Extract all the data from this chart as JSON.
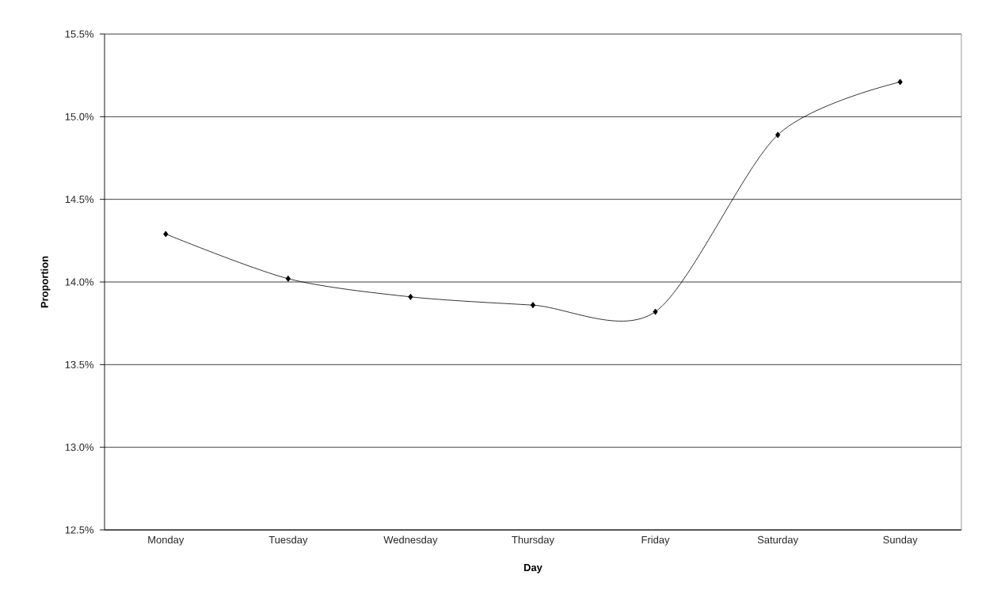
{
  "chart_data": {
    "type": "line",
    "xlabel": "Day",
    "ylabel": "Proportion",
    "categories": [
      "Monday",
      "Tuesday",
      "Wednesday",
      "Thursday",
      "Friday",
      "Saturday",
      "Sunday"
    ],
    "series": [
      {
        "color": "#000000",
        "values": [
          14.29,
          14.02,
          13.91,
          13.86,
          13.82,
          14.89,
          15.21
        ]
      }
    ],
    "ylim": [
      12.5,
      15.5
    ],
    "yticks": [
      {
        "value": 12.5,
        "label": "12.5%"
      },
      {
        "value": 13.0,
        "label": "13.0%"
      },
      {
        "value": 13.5,
        "label": "13.5%"
      },
      {
        "value": 14.0,
        "label": "14.0%"
      },
      {
        "value": 14.5,
        "label": "14.5%"
      },
      {
        "value": 15.0,
        "label": "15.0%"
      },
      {
        "value": 15.5,
        "label": "15.5%"
      }
    ],
    "grid": "y",
    "marker": "diamond",
    "line_style": "solid"
  }
}
